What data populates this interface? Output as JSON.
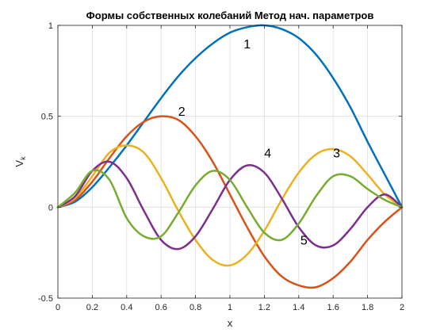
{
  "chart_data": {
    "type": "line",
    "title": "Формы собственных колебаний Метод нач. параметров",
    "xlabel": "x",
    "ylabel": "V",
    "ylabel_subscript": "k",
    "xlim": [
      0,
      2
    ],
    "ylim": [
      -0.5,
      1
    ],
    "x_ticks": [
      0,
      0.2,
      0.4,
      0.6,
      0.8,
      1,
      1.2,
      1.4,
      1.6,
      1.8,
      2
    ],
    "x_tick_labels": [
      "0",
      "0.2",
      "0.4",
      "0.6",
      "0.8",
      "1",
      "1.2",
      "1.4",
      "1.6",
      "1.8",
      "2"
    ],
    "y_ticks": [
      -0.5,
      0,
      0.5,
      1
    ],
    "y_tick_labels": [
      "-0.5",
      "0",
      "0.5",
      "1"
    ],
    "grid": true,
    "x": [
      0,
      0.1,
      0.2,
      0.3,
      0.4,
      0.5,
      0.6,
      0.7,
      0.8,
      0.9,
      1.0,
      1.1,
      1.2,
      1.3,
      1.4,
      1.5,
      1.6,
      1.7,
      1.8,
      1.9,
      2.0
    ],
    "series": [
      {
        "name": "1",
        "color": "#0072BD",
        "values": [
          0,
          0.03,
          0.11,
          0.22,
          0.34,
          0.47,
          0.6,
          0.72,
          0.82,
          0.9,
          0.96,
          0.99,
          1.0,
          0.98,
          0.93,
          0.84,
          0.71,
          0.55,
          0.36,
          0.18,
          0.0
        ]
      },
      {
        "name": "2",
        "color": "#D95319",
        "values": [
          0,
          0.04,
          0.14,
          0.27,
          0.39,
          0.47,
          0.5,
          0.48,
          0.39,
          0.25,
          0.07,
          -0.11,
          -0.27,
          -0.38,
          -0.43,
          -0.44,
          -0.39,
          -0.3,
          -0.18,
          -0.08,
          0.0
        ]
      },
      {
        "name": "3",
        "color": "#EDB120",
        "values": [
          0,
          0.05,
          0.17,
          0.3,
          0.34,
          0.3,
          0.16,
          -0.02,
          -0.18,
          -0.29,
          -0.32,
          -0.26,
          -0.13,
          0.04,
          0.19,
          0.29,
          0.32,
          0.28,
          0.18,
          0.07,
          0.0
        ]
      },
      {
        "name": "4",
        "color": "#7E2F8E",
        "values": [
          0,
          0.06,
          0.2,
          0.25,
          0.16,
          -0.02,
          -0.18,
          -0.23,
          -0.16,
          -0.01,
          0.15,
          0.23,
          0.19,
          0.05,
          -0.11,
          -0.21,
          -0.21,
          -0.12,
          0.0,
          0.07,
          0.0
        ]
      },
      {
        "name": "5",
        "color": "#77AC30",
        "values": [
          0,
          0.08,
          0.2,
          0.15,
          -0.06,
          -0.16,
          -0.16,
          -0.03,
          0.12,
          0.2,
          0.15,
          0.0,
          -0.14,
          -0.18,
          -0.09,
          0.06,
          0.17,
          0.17,
          0.1,
          0.04,
          0.0
        ]
      }
    ],
    "annotations": [
      {
        "text": "1",
        "x": 1.1,
        "y": 0.9
      },
      {
        "text": "2",
        "x": 0.72,
        "y": 0.53
      },
      {
        "text": "4",
        "x": 1.22,
        "y": 0.3
      },
      {
        "text": "3",
        "x": 1.62,
        "y": 0.3
      },
      {
        "text": "5",
        "x": 1.43,
        "y": -0.18
      }
    ],
    "colors": {
      "axes": "#262626",
      "grid": "#dfdfdf",
      "background": "#ffffff"
    }
  }
}
